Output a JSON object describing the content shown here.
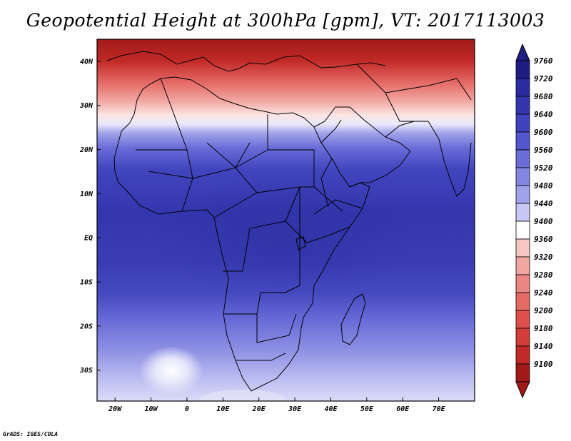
{
  "title": "Geopotential Height at 300hPa [gpm], VT: 2017113003",
  "footer": "GrADS: IGES/COLA",
  "map": {
    "lon_range": [
      -25,
      80
    ],
    "lat_range": [
      -37,
      45
    ],
    "lon_ticks": [
      {
        "value": -20,
        "label": "20W"
      },
      {
        "value": -10,
        "label": "10W"
      },
      {
        "value": 0,
        "label": "0"
      },
      {
        "value": 10,
        "label": "10E"
      },
      {
        "value": 20,
        "label": "20E"
      },
      {
        "value": 30,
        "label": "30E"
      },
      {
        "value": 40,
        "label": "40E"
      },
      {
        "value": 50,
        "label": "50E"
      },
      {
        "value": 60,
        "label": "60E"
      },
      {
        "value": 70,
        "label": "70E"
      }
    ],
    "lat_ticks": [
      {
        "value": 40,
        "label": "40N"
      },
      {
        "value": 30,
        "label": "30N"
      },
      {
        "value": 20,
        "label": "20N"
      },
      {
        "value": 10,
        "label": "10N"
      },
      {
        "value": 0,
        "label": "EQ"
      },
      {
        "value": -10,
        "label": "10S"
      },
      {
        "value": -20,
        "label": "20S"
      },
      {
        "value": -30,
        "label": "30S"
      }
    ]
  },
  "colorbar": {
    "levels": [
      {
        "label": "9760",
        "color": "#1f1c82"
      },
      {
        "label": "9720",
        "color": "#2a2b9e"
      },
      {
        "label": "9680",
        "color": "#3436ae"
      },
      {
        "label": "9640",
        "color": "#3f43bd"
      },
      {
        "label": "9600",
        "color": "#5256cc"
      },
      {
        "label": "9560",
        "color": "#6a6cd8"
      },
      {
        "label": "9520",
        "color": "#8486e2"
      },
      {
        "label": "9480",
        "color": "#a0a2ea"
      },
      {
        "label": "9440",
        "color": "#c6c7f4"
      },
      {
        "label": "9400",
        "color": "#ffffff"
      },
      {
        "label": "9360",
        "color": "#f6c6c3"
      },
      {
        "label": "9320",
        "color": "#f2a6a2"
      },
      {
        "label": "9280",
        "color": "#ec8682"
      },
      {
        "label": "9240",
        "color": "#e46a66"
      },
      {
        "label": "9200",
        "color": "#dc4f4b"
      },
      {
        "label": "9180",
        "color": "#d23c39"
      },
      {
        "label": "9140",
        "color": "#c12a27"
      },
      {
        "label": "9100",
        "color": "#a11a18"
      }
    ],
    "top_arrow_color": "#1f1c82",
    "bottom_arrow_color": "#a11a18"
  }
}
